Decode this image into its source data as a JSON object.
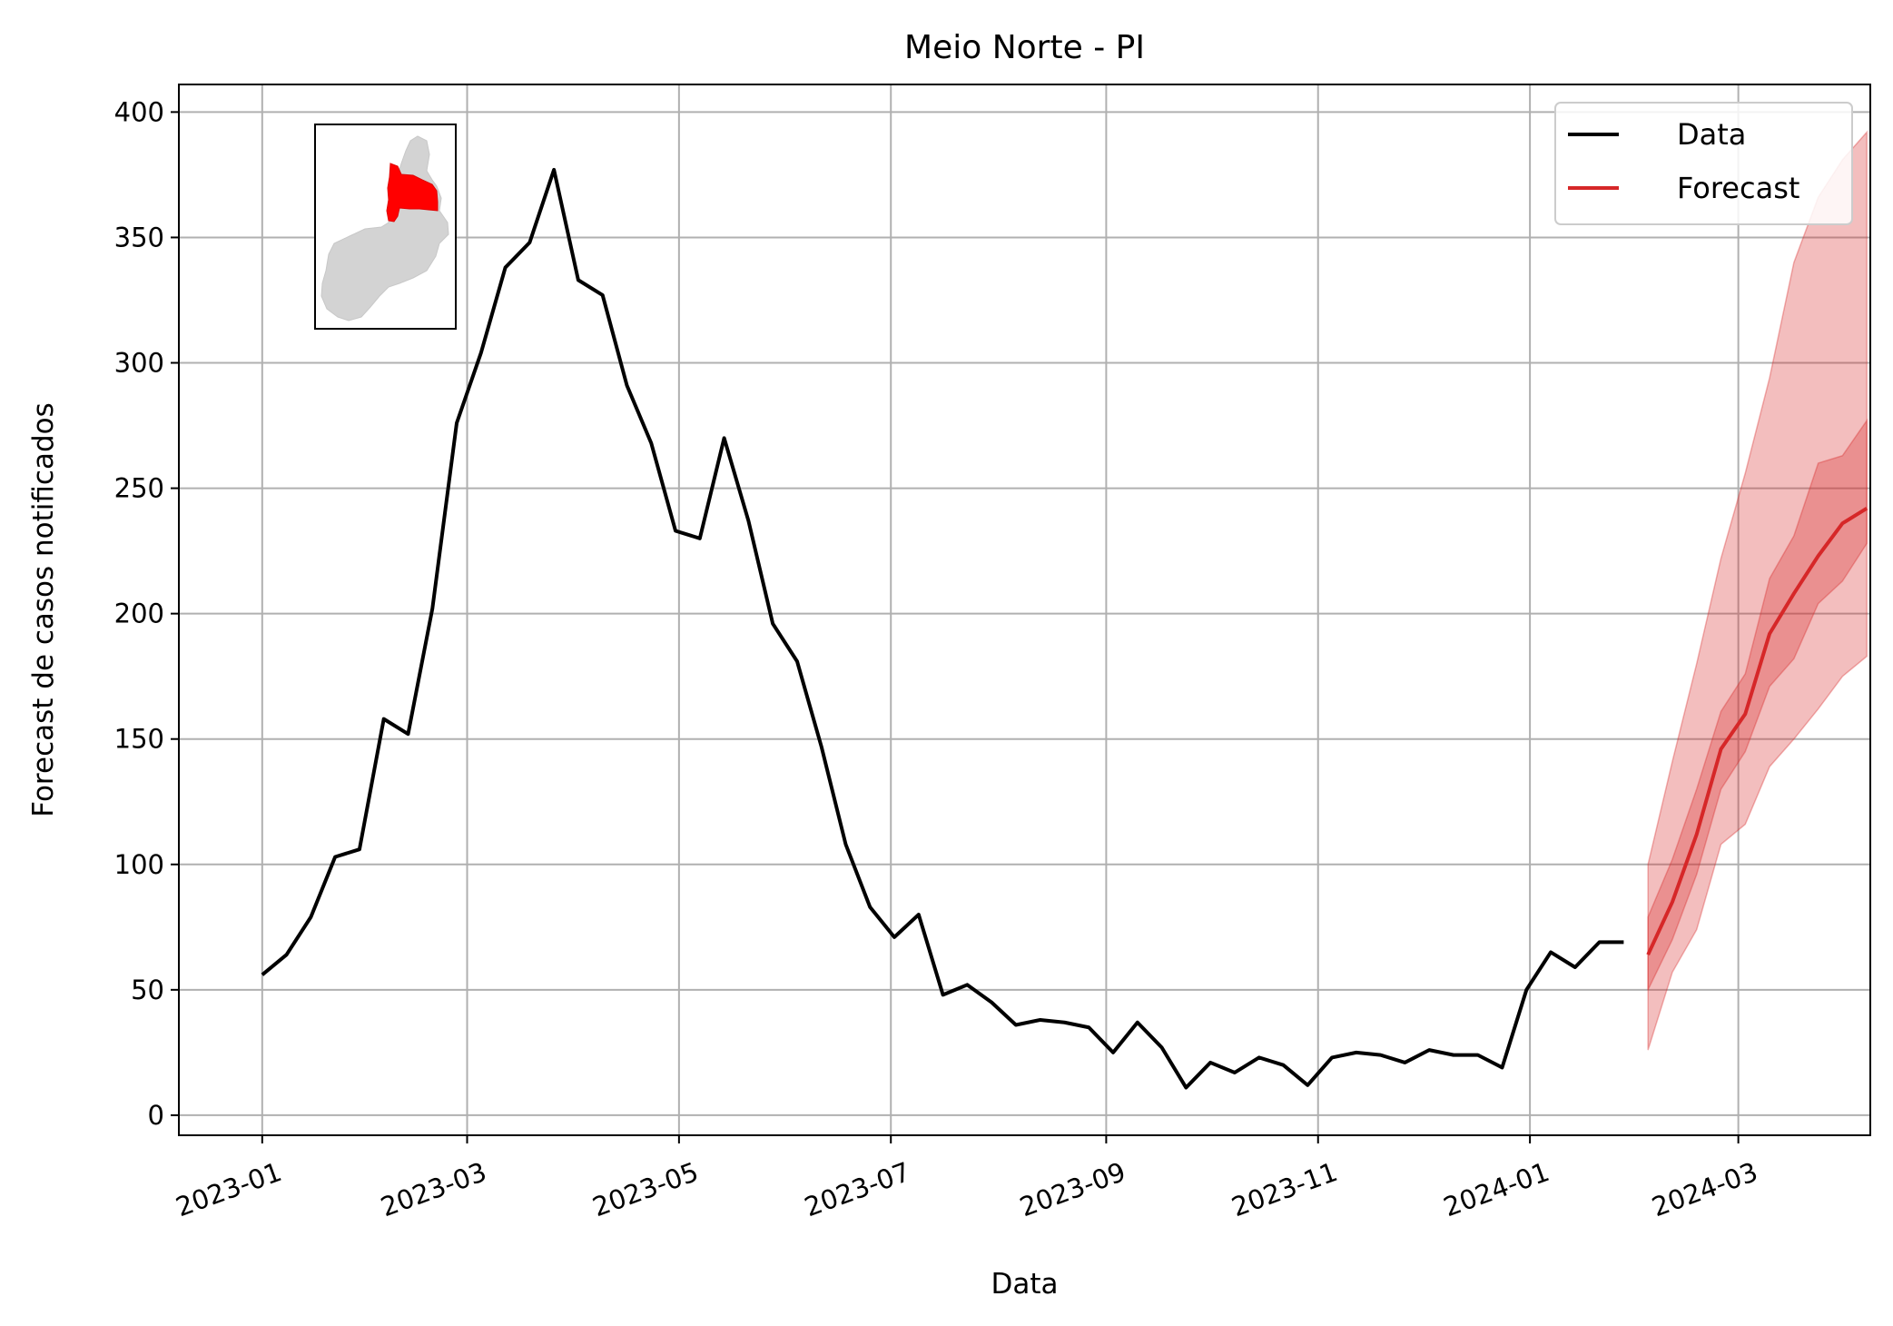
{
  "chart_data": {
    "type": "line",
    "title": "Meio Norte - PI",
    "xlabel": "Data",
    "ylabel": "Forecast de casos notificados",
    "xlim": [
      "2022-12-08",
      "2024-04-08"
    ],
    "ylim": [
      -8,
      411
    ],
    "x_ticks": [
      "2023-01",
      "2023-03",
      "2023-05",
      "2023-07",
      "2023-09",
      "2023-11",
      "2024-01",
      "2024-03"
    ],
    "y_ticks": [
      0,
      50,
      100,
      150,
      200,
      250,
      300,
      350,
      400
    ],
    "grid": true,
    "legend_position": "top-right",
    "colors": {
      "data": "#000000",
      "forecast": "#d62728",
      "band": "#d62728",
      "grid": "#b0b0b0",
      "map_region": "#ff0000",
      "map_state": "#d3d3d3"
    },
    "series": [
      {
        "name": "Data",
        "x": [
          "2023-01-01",
          "2023-01-08",
          "2023-01-15",
          "2023-01-22",
          "2023-01-29",
          "2023-02-05",
          "2023-02-12",
          "2023-02-19",
          "2023-02-26",
          "2023-03-05",
          "2023-03-12",
          "2023-03-19",
          "2023-03-26",
          "2023-04-02",
          "2023-04-09",
          "2023-04-16",
          "2023-04-23",
          "2023-04-30",
          "2023-05-07",
          "2023-05-14",
          "2023-05-21",
          "2023-05-28",
          "2023-06-04",
          "2023-06-11",
          "2023-06-18",
          "2023-06-25",
          "2023-07-02",
          "2023-07-09",
          "2023-07-16",
          "2023-07-23",
          "2023-07-30",
          "2023-08-06",
          "2023-08-13",
          "2023-08-20",
          "2023-08-27",
          "2023-09-03",
          "2023-09-10",
          "2023-09-17",
          "2023-09-24",
          "2023-10-01",
          "2023-10-08",
          "2023-10-15",
          "2023-10-22",
          "2023-10-29",
          "2023-11-05",
          "2023-11-12",
          "2023-11-19",
          "2023-11-26",
          "2023-12-03",
          "2023-12-10",
          "2023-12-17",
          "2023-12-24",
          "2023-12-31",
          "2024-01-07",
          "2024-01-14",
          "2024-01-21",
          "2024-01-28"
        ],
        "values": [
          56,
          64,
          79,
          103,
          106,
          158,
          152,
          202,
          276,
          304,
          338,
          348,
          377,
          333,
          327,
          291,
          268,
          233,
          230,
          270,
          237,
          196,
          181,
          147,
          108,
          83,
          71,
          80,
          48,
          52,
          45,
          36,
          38,
          37,
          35,
          25,
          37,
          27,
          11,
          21,
          17,
          23,
          20,
          12,
          23,
          25,
          24,
          21,
          26,
          24,
          24,
          19,
          50,
          65,
          59,
          69,
          69
        ]
      },
      {
        "name": "Forecast",
        "x": [
          "2024-02-04",
          "2024-02-11",
          "2024-02-18",
          "2024-02-25",
          "2024-03-03",
          "2024-03-10",
          "2024-03-17",
          "2024-03-24",
          "2024-03-31",
          "2024-04-07"
        ],
        "values": [
          64,
          85,
          112,
          146,
          160,
          192,
          208,
          223,
          236,
          242
        ],
        "inner_band": {
          "lower": [
            50,
            70,
            96,
            130,
            145,
            171,
            182,
            204,
            213,
            228
          ],
          "upper": [
            79,
            102,
            130,
            161,
            176,
            214,
            231,
            260,
            263,
            277
          ]
        },
        "outer_band": {
          "lower": [
            26,
            57,
            74,
            108,
            116,
            139,
            150,
            162,
            175,
            183
          ],
          "upper": [
            100,
            141,
            180,
            222,
            256,
            294,
            340,
            366,
            381,
            392
          ]
        }
      }
    ]
  }
}
